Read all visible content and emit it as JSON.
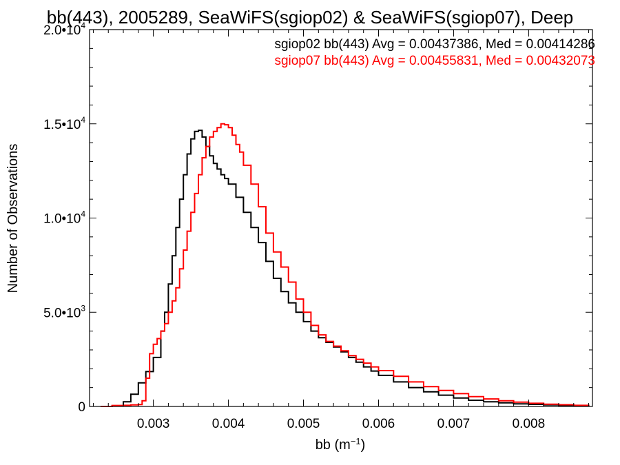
{
  "chart_data": {
    "type": "line",
    "title": "bb(443), 2005289, SeaWiFS(sgiop02) & SeaWiFS(sgiop07), Deep",
    "xlabel": "bb (m",
    "xlabel_sup": "−1",
    "xlabel_tail": ")",
    "ylabel": "Number of Observations",
    "xlim": [
      0.00215,
      0.00885
    ],
    "ylim": [
      0,
      20000
    ],
    "x_ticks": [
      0.003,
      0.004,
      0.005,
      0.006,
      0.007,
      0.008
    ],
    "x_tick_labels": [
      "0.003",
      "0.004",
      "0.005",
      "0.006",
      "0.007",
      "0.008"
    ],
    "y_ticks": [
      {
        "value": 0,
        "base": "0",
        "exp": ""
      },
      {
        "value": 5000,
        "base": "5.0•10",
        "exp": "3"
      },
      {
        "value": 10000,
        "base": "1.0•10",
        "exp": "4"
      },
      {
        "value": 15000,
        "base": "1.5•10",
        "exp": "4"
      },
      {
        "value": 20000,
        "base": "2.0•10",
        "exp": "4"
      }
    ],
    "step": true,
    "legend_position": "top-right",
    "series": [
      {
        "name": "sgiop02",
        "color": "#000000",
        "legend": "sgiop02 bb(443) Avg = 0.00437386, Med = 0.00414286",
        "x": [
          0.0023,
          0.00245,
          0.0026,
          0.0027,
          0.0028,
          0.0029,
          0.003,
          0.0031,
          0.00315,
          0.0032,
          0.00325,
          0.0033,
          0.00335,
          0.0034,
          0.00345,
          0.0035,
          0.00355,
          0.0036,
          0.00365,
          0.0037,
          0.00375,
          0.0038,
          0.00385,
          0.0039,
          0.00395,
          0.004,
          0.0041,
          0.0042,
          0.0043,
          0.0044,
          0.0045,
          0.0046,
          0.0047,
          0.0048,
          0.0049,
          0.005,
          0.0051,
          0.0052,
          0.0053,
          0.0054,
          0.0055,
          0.0056,
          0.0057,
          0.0058,
          0.0059,
          0.006,
          0.0062,
          0.0064,
          0.0066,
          0.0068,
          0.007,
          0.0072,
          0.0074,
          0.0076,
          0.0078,
          0.008,
          0.0082,
          0.0084,
          0.0086,
          0.0088
        ],
        "y": [
          0,
          30,
          250,
          650,
          1250,
          1850,
          2600,
          4000,
          5000,
          6500,
          8000,
          9500,
          11000,
          12300,
          13400,
          14200,
          14600,
          14650,
          14300,
          13800,
          13300,
          12900,
          12600,
          12300,
          12100,
          11800,
          11100,
          10300,
          9500,
          8700,
          7700,
          6800,
          6100,
          5500,
          5000,
          4500,
          4000,
          3650,
          3400,
          3150,
          2900,
          2600,
          2350,
          2100,
          1880,
          1650,
          1300,
          1000,
          780,
          600,
          450,
          330,
          250,
          190,
          140,
          110,
          80,
          60,
          40,
          20
        ]
      },
      {
        "name": "sgiop07",
        "color": "#ff0000",
        "legend": "sgiop07 bb(443) Avg = 0.00455831, Med = 0.00432073",
        "x": [
          0.0023,
          0.00245,
          0.0026,
          0.0027,
          0.0028,
          0.00285,
          0.0029,
          0.00295,
          0.003,
          0.00305,
          0.0031,
          0.00315,
          0.0032,
          0.00325,
          0.0033,
          0.00335,
          0.0034,
          0.00345,
          0.0035,
          0.00355,
          0.0036,
          0.00365,
          0.0037,
          0.00375,
          0.0038,
          0.00385,
          0.0039,
          0.00395,
          0.004,
          0.00405,
          0.0041,
          0.00415,
          0.0042,
          0.0043,
          0.0044,
          0.0045,
          0.0046,
          0.0047,
          0.0048,
          0.0049,
          0.005,
          0.0051,
          0.0052,
          0.0053,
          0.0054,
          0.0055,
          0.0056,
          0.0057,
          0.0058,
          0.0059,
          0.006,
          0.0062,
          0.0064,
          0.0066,
          0.0068,
          0.007,
          0.0072,
          0.0074,
          0.0076,
          0.0078,
          0.008,
          0.0082,
          0.0084,
          0.0086,
          0.0088
        ],
        "y": [
          0,
          50,
          60,
          80,
          100,
          300,
          1500,
          2800,
          3300,
          3600,
          4000,
          4400,
          5000,
          5600,
          6300,
          7300,
          8300,
          9300,
          10300,
          11300,
          12300,
          13200,
          13800,
          14300,
          14600,
          14800,
          15000,
          14950,
          14800,
          14400,
          13900,
          13500,
          12800,
          11800,
          10600,
          9200,
          8200,
          7400,
          6600,
          5700,
          5000,
          4300,
          3800,
          3450,
          3200,
          2950,
          2700,
          2500,
          2300,
          2100,
          1900,
          1600,
          1300,
          1050,
          850,
          680,
          520,
          400,
          300,
          230,
          170,
          120,
          90,
          60,
          40
        ]
      }
    ]
  }
}
